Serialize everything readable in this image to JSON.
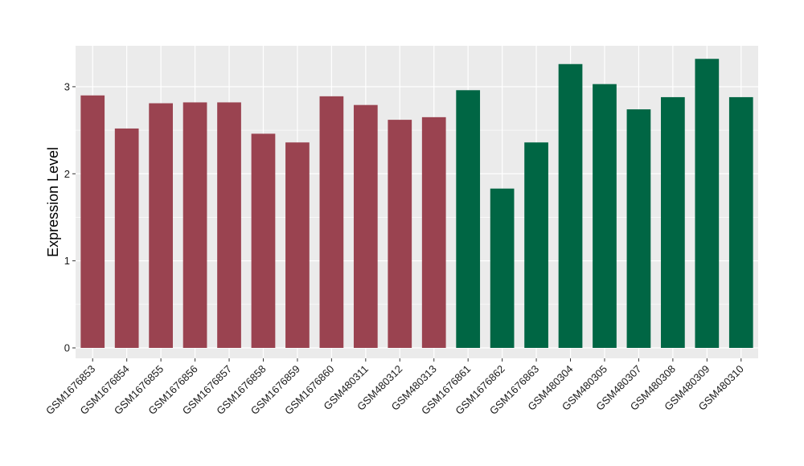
{
  "chart_data": {
    "type": "bar",
    "title": "",
    "xlabel": "",
    "ylabel": "Expression Level",
    "ylim": [
      -0.12,
      3.47
    ],
    "yticks": [
      0,
      1,
      2,
      3
    ],
    "grid": true,
    "categories": [
      "GSM1676853",
      "GSM1676854",
      "GSM1676855",
      "GSM1676856",
      "GSM1676857",
      "GSM1676858",
      "GSM1676859",
      "GSM1676860",
      "GSM480311",
      "GSM480312",
      "GSM480313",
      "GSM1676861",
      "GSM1676862",
      "GSM1676863",
      "GSM480304",
      "GSM480305",
      "GSM480307",
      "GSM480308",
      "GSM480309",
      "GSM480310"
    ],
    "values": [
      2.9,
      2.52,
      2.81,
      2.82,
      2.82,
      2.46,
      2.36,
      2.89,
      2.79,
      2.62,
      2.65,
      2.96,
      1.83,
      2.36,
      3.26,
      3.03,
      2.74,
      2.88,
      3.32,
      2.88
    ],
    "group_colors": [
      "#9a4350",
      "#9a4350",
      "#9a4350",
      "#9a4350",
      "#9a4350",
      "#9a4350",
      "#9a4350",
      "#9a4350",
      "#9a4350",
      "#9a4350",
      "#9a4350",
      "#006644",
      "#006644",
      "#006644",
      "#006644",
      "#006644",
      "#006644",
      "#006644",
      "#006644",
      "#006644"
    ],
    "panel_background": "#ebebeb",
    "grid_color": "#ffffff"
  }
}
